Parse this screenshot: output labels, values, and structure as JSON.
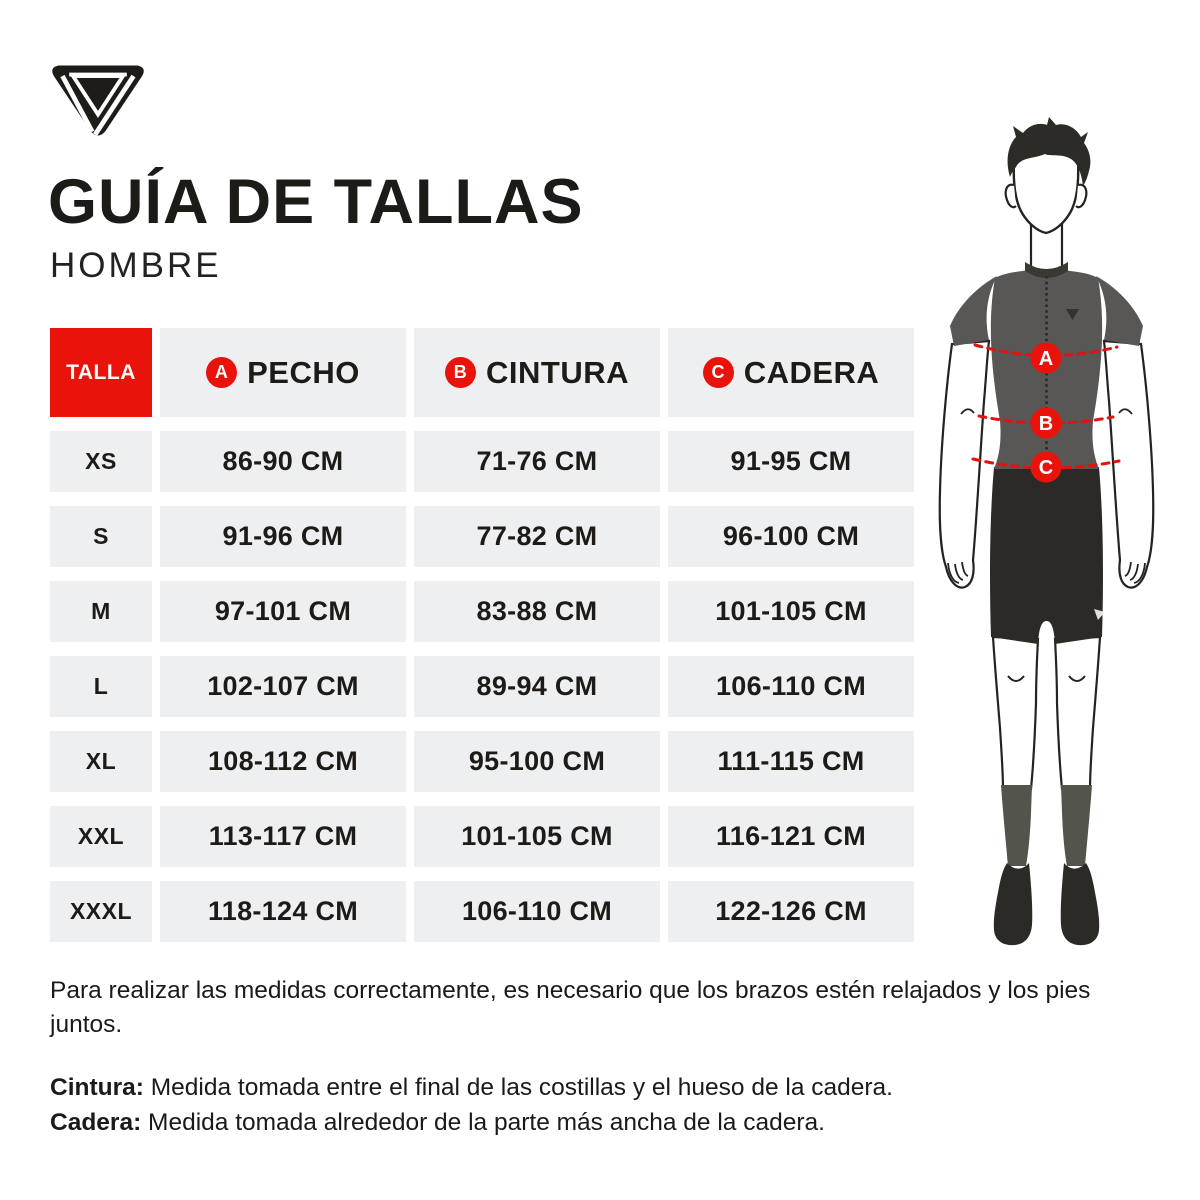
{
  "header": {
    "title": "GUÍA DE TALLAS",
    "subtitle": "HOMBRE"
  },
  "table": {
    "size_header": "TALLA",
    "columns": [
      {
        "badge": "A",
        "label": "PECHO"
      },
      {
        "badge": "B",
        "label": "CINTURA"
      },
      {
        "badge": "C",
        "label": "CADERA"
      }
    ],
    "rows": [
      {
        "size": "XS",
        "pecho": "86-90 CM",
        "cintura": "71-76 CM",
        "cadera": "91-95 CM"
      },
      {
        "size": "S",
        "pecho": "91-96 CM",
        "cintura": "77-82 CM",
        "cadera": "96-100 CM"
      },
      {
        "size": "M",
        "pecho": "97-101 CM",
        "cintura": "83-88 CM",
        "cadera": "101-105 CM"
      },
      {
        "size": "L",
        "pecho": "102-107 CM",
        "cintura": "89-94 CM",
        "cadera": "106-110 CM"
      },
      {
        "size": "XL",
        "pecho": "108-112 CM",
        "cintura": "95-100 CM",
        "cadera": "111-115 CM"
      },
      {
        "size": "XXL",
        "pecho": "113-117 CM",
        "cintura": "101-105 CM",
        "cadera": "116-121 CM"
      },
      {
        "size": "XXXL",
        "pecho": "118-124 CM",
        "cintura": "106-110 CM",
        "cadera": "122-126 CM"
      }
    ]
  },
  "figure": {
    "markers": [
      "A",
      "B",
      "C"
    ]
  },
  "notes": {
    "intro": "Para realizar las medidas correctamente, es necesario que los brazos estén relajados y los pies juntos.",
    "definitions": [
      {
        "term": "Cintura:",
        "text": "Medida tomada entre el final de las costillas y el hueso de la cadera."
      },
      {
        "term": "Cadera:",
        "text": "Medida tomada alrededor de la parte más ancha de la cadera."
      }
    ]
  },
  "colors": {
    "accent_red": "#e9130c",
    "cell_gray": "#eeeff0",
    "text_black": "#1d1b18",
    "jersey_gray": "#595656",
    "dark": "#2b2a26",
    "sock_gray": "#53544b"
  }
}
